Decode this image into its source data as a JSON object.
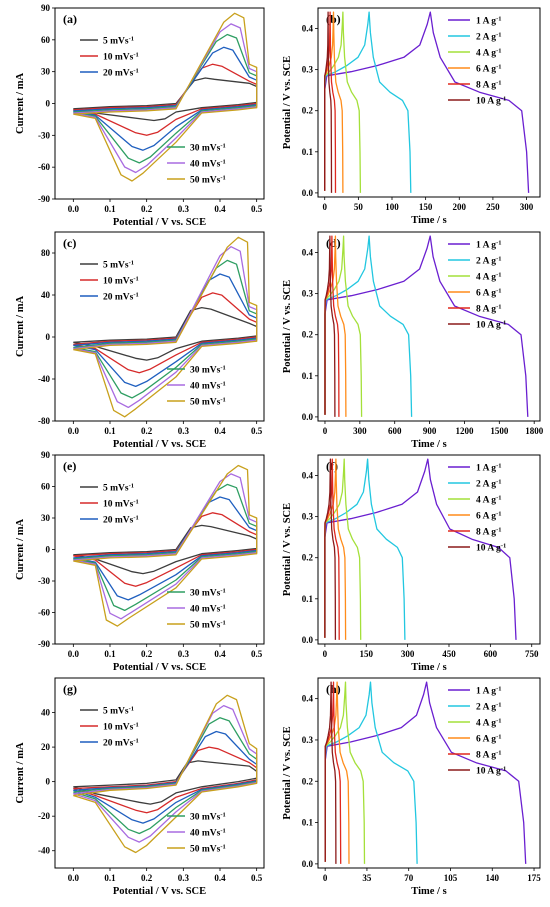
{
  "chart_data": [
    {
      "id": "a",
      "type": "cv",
      "panel_label": "(a)",
      "xlabel": "Potential / V vs. SCE",
      "ylabel": "Current / mA",
      "xlim": [
        -0.05,
        0.52
      ],
      "ylim": [
        -90,
        90
      ],
      "xticks": [
        "0.0",
        "0.1",
        "0.2",
        "0.3",
        "0.4",
        "0.5"
      ],
      "xtick_values": [
        0,
        0.1,
        0.2,
        0.3,
        0.4,
        0.5
      ],
      "yticks": [
        "-90",
        "-60",
        "-30",
        "0",
        "30",
        "60",
        "90"
      ],
      "ytick_values": [
        -90,
        -60,
        -30,
        0,
        30,
        60,
        90
      ],
      "legend_group_top": [
        0,
        1,
        2
      ],
      "legend_group_bottom": [
        3,
        4,
        5
      ],
      "series": [
        {
          "name": "5 mVs-1",
          "color": "#3d3d3d",
          "peak": [
            0.36,
            24
          ],
          "trough": [
            0.22,
            -16
          ],
          "start": [
            0.0,
            -5
          ],
          "tail": [
            0.5,
            16
          ],
          "base": -2
        },
        {
          "name": "10 mVs-1",
          "color": "#d62a2a",
          "peak": [
            0.38,
            37
          ],
          "trough": [
            0.2,
            -30
          ],
          "start": [
            0.0,
            -6
          ],
          "tail": [
            0.5,
            18
          ],
          "base": -3
        },
        {
          "name": "20 mVs-1",
          "color": "#1f5fbf",
          "peak": [
            0.41,
            53
          ],
          "trough": [
            0.19,
            -44
          ],
          "start": [
            0.0,
            -7
          ],
          "tail": [
            0.5,
            22
          ],
          "base": -4
        },
        {
          "name": "30 mVs-1",
          "color": "#2e9e62",
          "peak": [
            0.42,
            65
          ],
          "trough": [
            0.18,
            -56
          ],
          "start": [
            0.0,
            -8
          ],
          "tail": [
            0.5,
            26
          ],
          "base": -5
        },
        {
          "name": "40 mVs-1",
          "color": "#a86be0",
          "peak": [
            0.43,
            75
          ],
          "trough": [
            0.17,
            -65
          ],
          "start": [
            0.0,
            -9
          ],
          "tail": [
            0.5,
            30
          ],
          "base": -6
        },
        {
          "name": "50 mVs-1",
          "color": "#c8a01c",
          "peak": [
            0.44,
            85
          ],
          "trough": [
            0.16,
            -73
          ],
          "start": [
            0.0,
            -10
          ],
          "tail": [
            0.5,
            34
          ],
          "base": -7
        }
      ]
    },
    {
      "id": "b",
      "type": "gcd",
      "panel_label": "(b)",
      "xlabel": "Time / s",
      "ylabel": "Potential / V vs. SCE",
      "xlim": [
        -10,
        320
      ],
      "ylim": [
        -0.01,
        0.45
      ],
      "xticks": [
        "0",
        "50",
        "100",
        "150",
        "200",
        "250",
        "300"
      ],
      "xtick_values": [
        0,
        50,
        100,
        150,
        200,
        250,
        300
      ],
      "yticks": [
        "0.0",
        "0.1",
        "0.2",
        "0.3",
        "0.4"
      ],
      "ytick_values": [
        0,
        0.1,
        0.2,
        0.3,
        0.4
      ],
      "series": [
        {
          "name": "1 A g-1",
          "color": "#6a1fd0",
          "t_charge": 157,
          "t_end": 303
        },
        {
          "name": "2 A g-1",
          "color": "#22c7e0",
          "t_charge": 66,
          "t_end": 128
        },
        {
          "name": "4 A g-1",
          "color": "#a4e03a",
          "t_charge": 27,
          "t_end": 53
        },
        {
          "name": "6 A g-1",
          "color": "#ff8c1a",
          "t_charge": 13,
          "t_end": 27
        },
        {
          "name": "8 A g-1",
          "color": "#e0281f",
          "t_charge": 8,
          "t_end": 16
        },
        {
          "name": "10 A g-1",
          "color": "#8b1a1a",
          "t_charge": 5,
          "t_end": 10
        }
      ]
    },
    {
      "id": "c",
      "type": "cv",
      "panel_label": "(c)",
      "xlabel": "Potential / V vs. SCE",
      "ylabel": "Current / mA",
      "xlim": [
        -0.05,
        0.52
      ],
      "ylim": [
        -80,
        100
      ],
      "xticks": [
        "0.0",
        "0.1",
        "0.2",
        "0.3",
        "0.4",
        "0.5"
      ],
      "xtick_values": [
        0,
        0.1,
        0.2,
        0.3,
        0.4,
        0.5
      ],
      "yticks": [
        "-80",
        "-40",
        "0",
        "40",
        "80"
      ],
      "ytick_values": [
        -80,
        -40,
        0,
        40,
        80
      ],
      "legend_group_top": [
        0,
        1,
        2
      ],
      "legend_group_bottom": [
        3,
        4,
        5
      ],
      "series": [
        {
          "name": "5 mVs-1",
          "color": "#3d3d3d",
          "peak": [
            0.35,
            28
          ],
          "trough": [
            0.2,
            -22
          ],
          "start": [
            0.0,
            -5
          ],
          "tail": [
            0.5,
            10
          ],
          "base": -2
        },
        {
          "name": "10 mVs-1",
          "color": "#d62a2a",
          "peak": [
            0.38,
            42
          ],
          "trough": [
            0.18,
            -34
          ],
          "start": [
            0.0,
            -7
          ],
          "tail": [
            0.5,
            14
          ],
          "base": -3
        },
        {
          "name": "20 mVs-1",
          "color": "#1f5fbf",
          "peak": [
            0.4,
            60
          ],
          "trough": [
            0.17,
            -47
          ],
          "start": [
            0.0,
            -8
          ],
          "tail": [
            0.5,
            18
          ],
          "base": -4
        },
        {
          "name": "30 mVs-1",
          "color": "#2e9e62",
          "peak": [
            0.42,
            73
          ],
          "trough": [
            0.16,
            -58
          ],
          "start": [
            0.0,
            -10
          ],
          "tail": [
            0.5,
            22
          ],
          "base": -5
        },
        {
          "name": "40 mVs-1",
          "color": "#a86be0",
          "peak": [
            0.43,
            86
          ],
          "trough": [
            0.15,
            -67
          ],
          "start": [
            0.0,
            -11
          ],
          "tail": [
            0.5,
            26
          ],
          "base": -6
        },
        {
          "name": "50 mVs-1",
          "color": "#c8a01c",
          "peak": [
            0.45,
            95
          ],
          "trough": [
            0.14,
            -76
          ],
          "start": [
            0.0,
            -12
          ],
          "tail": [
            0.5,
            30
          ],
          "base": -7
        }
      ]
    },
    {
      "id": "d",
      "type": "gcd",
      "panel_label": "(d)",
      "xlabel": "Time / s",
      "ylabel": "Potential / V vs. SCE",
      "xlim": [
        -60,
        1850
      ],
      "ylim": [
        -0.01,
        0.45
      ],
      "xticks": [
        "0",
        "300",
        "600",
        "900",
        "1200",
        "1500",
        "1800"
      ],
      "xtick_values": [
        0,
        300,
        600,
        900,
        1200,
        1500,
        1800
      ],
      "yticks": [
        "0.0",
        "0.1",
        "0.2",
        "0.3",
        "0.4"
      ],
      "ytick_values": [
        0,
        0.1,
        0.2,
        0.3,
        0.4
      ],
      "series": [
        {
          "name": "1 A g-1",
          "color": "#6a1fd0",
          "t_charge": 905,
          "t_end": 1745
        },
        {
          "name": "2 A g-1",
          "color": "#22c7e0",
          "t_charge": 380,
          "t_end": 745
        },
        {
          "name": "4 A g-1",
          "color": "#a4e03a",
          "t_charge": 160,
          "t_end": 315
        },
        {
          "name": "6 A g-1",
          "color": "#ff8c1a",
          "t_charge": 90,
          "t_end": 180
        },
        {
          "name": "8 A g-1",
          "color": "#e0281f",
          "t_charge": 60,
          "t_end": 120
        },
        {
          "name": "10 A g-1",
          "color": "#8b1a1a",
          "t_charge": 42,
          "t_end": 85
        }
      ]
    },
    {
      "id": "e",
      "type": "cv",
      "panel_label": "(e)",
      "xlabel": "Potential / V vs. SCE",
      "ylabel": "Current / mA",
      "xlim": [
        -0.05,
        0.52
      ],
      "ylim": [
        -90,
        90
      ],
      "xticks": [
        "0.0",
        "0.1",
        "0.2",
        "0.3",
        "0.4",
        "0.5"
      ],
      "xtick_values": [
        0,
        0.1,
        0.2,
        0.3,
        0.4,
        0.5
      ],
      "yticks": [
        "-90",
        "-60",
        "-30",
        "0",
        "30",
        "60",
        "90"
      ],
      "ytick_values": [
        -90,
        -60,
        -30,
        0,
        30,
        60,
        90
      ],
      "legend_group_top": [
        0,
        1,
        2
      ],
      "legend_group_bottom": [
        3,
        4,
        5
      ],
      "series": [
        {
          "name": "5 mVs-1",
          "color": "#3d3d3d",
          "peak": [
            0.35,
            23
          ],
          "trough": [
            0.19,
            -23
          ],
          "start": [
            0.0,
            -5
          ],
          "tail": [
            0.5,
            10
          ],
          "base": -2
        },
        {
          "name": "10 mVs-1",
          "color": "#d62a2a",
          "peak": [
            0.38,
            35
          ],
          "trough": [
            0.17,
            -35
          ],
          "start": [
            0.0,
            -6
          ],
          "tail": [
            0.5,
            14
          ],
          "base": -3
        },
        {
          "name": "20 mVs-1",
          "color": "#1f5fbf",
          "peak": [
            0.4,
            50
          ],
          "trough": [
            0.15,
            -48
          ],
          "start": [
            0.0,
            -8
          ],
          "tail": [
            0.5,
            18
          ],
          "base": -4
        },
        {
          "name": "30 mVs-1",
          "color": "#2e9e62",
          "peak": [
            0.42,
            62
          ],
          "trough": [
            0.14,
            -58
          ],
          "start": [
            0.0,
            -9
          ],
          "tail": [
            0.5,
            22
          ],
          "base": -5
        },
        {
          "name": "40 mVs-1",
          "color": "#a86be0",
          "peak": [
            0.43,
            72
          ],
          "trough": [
            0.13,
            -66
          ],
          "start": [
            0.0,
            -10
          ],
          "tail": [
            0.5,
            26
          ],
          "base": -6
        },
        {
          "name": "50 mVs-1",
          "color": "#c8a01c",
          "peak": [
            0.45,
            80
          ],
          "trough": [
            0.12,
            -73
          ],
          "start": [
            0.0,
            -11
          ],
          "tail": [
            0.5,
            30
          ],
          "base": -7
        }
      ]
    },
    {
      "id": "f",
      "type": "gcd",
      "panel_label": "(f)",
      "xlabel": "Time / s",
      "ylabel": "Potential / V vs. SCE",
      "xlim": [
        -25,
        780
      ],
      "ylim": [
        -0.01,
        0.45
      ],
      "xticks": [
        "0",
        "150",
        "300",
        "450",
        "600",
        "750"
      ],
      "xtick_values": [
        0,
        150,
        300,
        450,
        600,
        750
      ],
      "yticks": [
        "0.0",
        "0.1",
        "0.2",
        "0.3",
        "0.4"
      ],
      "ytick_values": [
        0,
        0.1,
        0.2,
        0.3,
        0.4
      ],
      "series": [
        {
          "name": "1 A g-1",
          "color": "#6a1fd0",
          "t_charge": 373,
          "t_end": 693
        },
        {
          "name": "2 A g-1",
          "color": "#22c7e0",
          "t_charge": 155,
          "t_end": 290
        },
        {
          "name": "4 A g-1",
          "color": "#a4e03a",
          "t_charge": 70,
          "t_end": 130
        },
        {
          "name": "6 A g-1",
          "color": "#ff8c1a",
          "t_charge": 40,
          "t_end": 75
        },
        {
          "name": "8 A g-1",
          "color": "#e0281f",
          "t_charge": 27,
          "t_end": 52
        },
        {
          "name": "10 A g-1",
          "color": "#8b1a1a",
          "t_charge": 20,
          "t_end": 38
        }
      ]
    },
    {
      "id": "g",
      "type": "cv",
      "panel_label": "(g)",
      "xlabel": "Potential / V vs. SCE",
      "ylabel": "Current / mA",
      "xlim": [
        -0.05,
        0.52
      ],
      "ylim": [
        -50,
        60
      ],
      "xticks": [
        "0.0",
        "0.1",
        "0.2",
        "0.3",
        "0.4",
        "0.5"
      ],
      "xtick_values": [
        0,
        0.1,
        0.2,
        0.3,
        0.4,
        0.5
      ],
      "yticks": [
        "-40",
        "-20",
        "0",
        "20",
        "40"
      ],
      "ytick_values": [
        -40,
        -20,
        0,
        20,
        40
      ],
      "legend_group_top": [
        0,
        1,
        2
      ],
      "legend_group_bottom": [
        3,
        4,
        5
      ],
      "series": [
        {
          "name": "5 mVs-1",
          "color": "#3d3d3d",
          "peak": [
            0.34,
            12
          ],
          "trough": [
            0.21,
            -13
          ],
          "start": [
            0.0,
            -3
          ],
          "tail": [
            0.5,
            6
          ],
          "base": -1
        },
        {
          "name": "10 mVs-1",
          "color": "#d62a2a",
          "peak": [
            0.37,
            20
          ],
          "trough": [
            0.2,
            -18
          ],
          "start": [
            0.0,
            -4
          ],
          "tail": [
            0.5,
            8
          ],
          "base": -2
        },
        {
          "name": "20 mVs-1",
          "color": "#1f5fbf",
          "peak": [
            0.39,
            29
          ],
          "trough": [
            0.19,
            -24
          ],
          "start": [
            0.0,
            -5
          ],
          "tail": [
            0.5,
            10
          ],
          "base": -2.5
        },
        {
          "name": "30 mVs-1",
          "color": "#2e9e62",
          "peak": [
            0.4,
            37
          ],
          "trough": [
            0.18,
            -30
          ],
          "start": [
            0.0,
            -6
          ],
          "tail": [
            0.5,
            13
          ],
          "base": -3
        },
        {
          "name": "40 mVs-1",
          "color": "#a86be0",
          "peak": [
            0.41,
            44
          ],
          "trough": [
            0.18,
            -35
          ],
          "start": [
            0.0,
            -7
          ],
          "tail": [
            0.5,
            16
          ],
          "base": -3.5
        },
        {
          "name": "50 mVs-1",
          "color": "#c8a01c",
          "peak": [
            0.42,
            50
          ],
          "trough": [
            0.17,
            -41
          ],
          "start": [
            0.0,
            -8
          ],
          "tail": [
            0.5,
            19
          ],
          "base": -4
        }
      ]
    },
    {
      "id": "h",
      "type": "gcd",
      "panel_label": "(h)",
      "xlabel": "Time / s",
      "ylabel": "Potential / V vs. SCE",
      "xlim": [
        -6,
        180
      ],
      "ylim": [
        -0.01,
        0.45
      ],
      "xticks": [
        "0",
        "35",
        "70",
        "105",
        "140",
        "175"
      ],
      "xtick_values": [
        0,
        35,
        70,
        105,
        140,
        175
      ],
      "yticks": [
        "0.0",
        "0.1",
        "0.2",
        "0.3",
        "0.4"
      ],
      "ytick_values": [
        0,
        0.1,
        0.2,
        0.3,
        0.4
      ],
      "series": [
        {
          "name": "1 A g-1",
          "color": "#6a1fd0",
          "t_charge": 85,
          "t_end": 168
        },
        {
          "name": "2 A g-1",
          "color": "#22c7e0",
          "t_charge": 38,
          "t_end": 77
        },
        {
          "name": "4 A g-1",
          "color": "#a4e03a",
          "t_charge": 17,
          "t_end": 33
        },
        {
          "name": "6 A g-1",
          "color": "#ff8c1a",
          "t_charge": 10,
          "t_end": 20
        },
        {
          "name": "8 A g-1",
          "color": "#e0281f",
          "t_charge": 7,
          "t_end": 13
        },
        {
          "name": "10 A g-1",
          "color": "#8b1a1a",
          "t_charge": 5,
          "t_end": 9
        }
      ]
    }
  ]
}
